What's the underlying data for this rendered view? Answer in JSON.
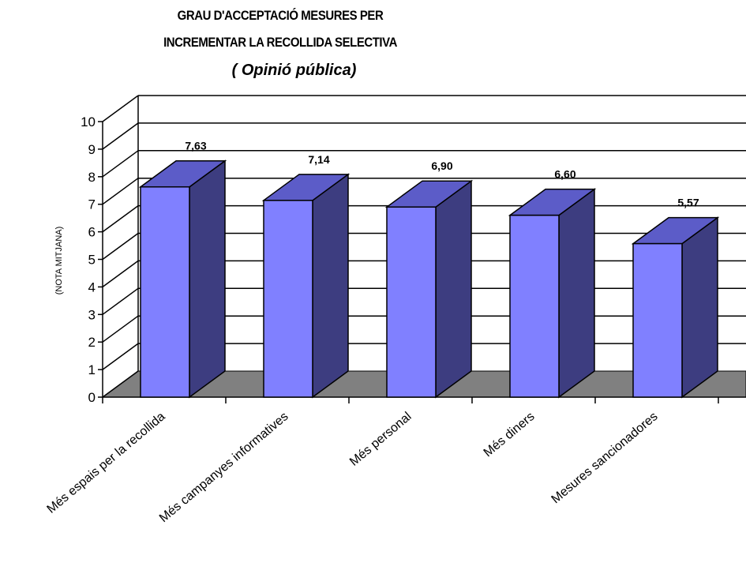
{
  "chart_data": {
    "type": "bar",
    "title_lines": [
      "GRAU D'ACCEPTACIÓ MESURES PER",
      "INCREMENTAR LA RECOLLIDA SELECTIVA"
    ],
    "subtitle": "( Opinió pública)",
    "ylabel": "(NOTA MITJANA)",
    "xlabel": "",
    "categories": [
      "Més espais per la recollida",
      "Més campanyes informatives",
      "Més personal",
      "Més diners",
      "Mesures sancionadores"
    ],
    "values": [
      7.63,
      7.14,
      6.9,
      6.6,
      5.57
    ],
    "value_labels": [
      "7,63",
      "7,14",
      "6,90",
      "6,60",
      "5,57"
    ],
    "yticks": [
      "0",
      "1",
      "2",
      "3",
      "4",
      "5",
      "6",
      "7",
      "8",
      "9",
      "10"
    ],
    "ylim": [
      0,
      10
    ],
    "grid": true,
    "legend": "none",
    "colors": {
      "bar_front": "#8080FF",
      "bar_top": "#5C5CC8",
      "bar_side": "#3D3D80",
      "floor": "#808080",
      "grid": "#000000"
    }
  }
}
